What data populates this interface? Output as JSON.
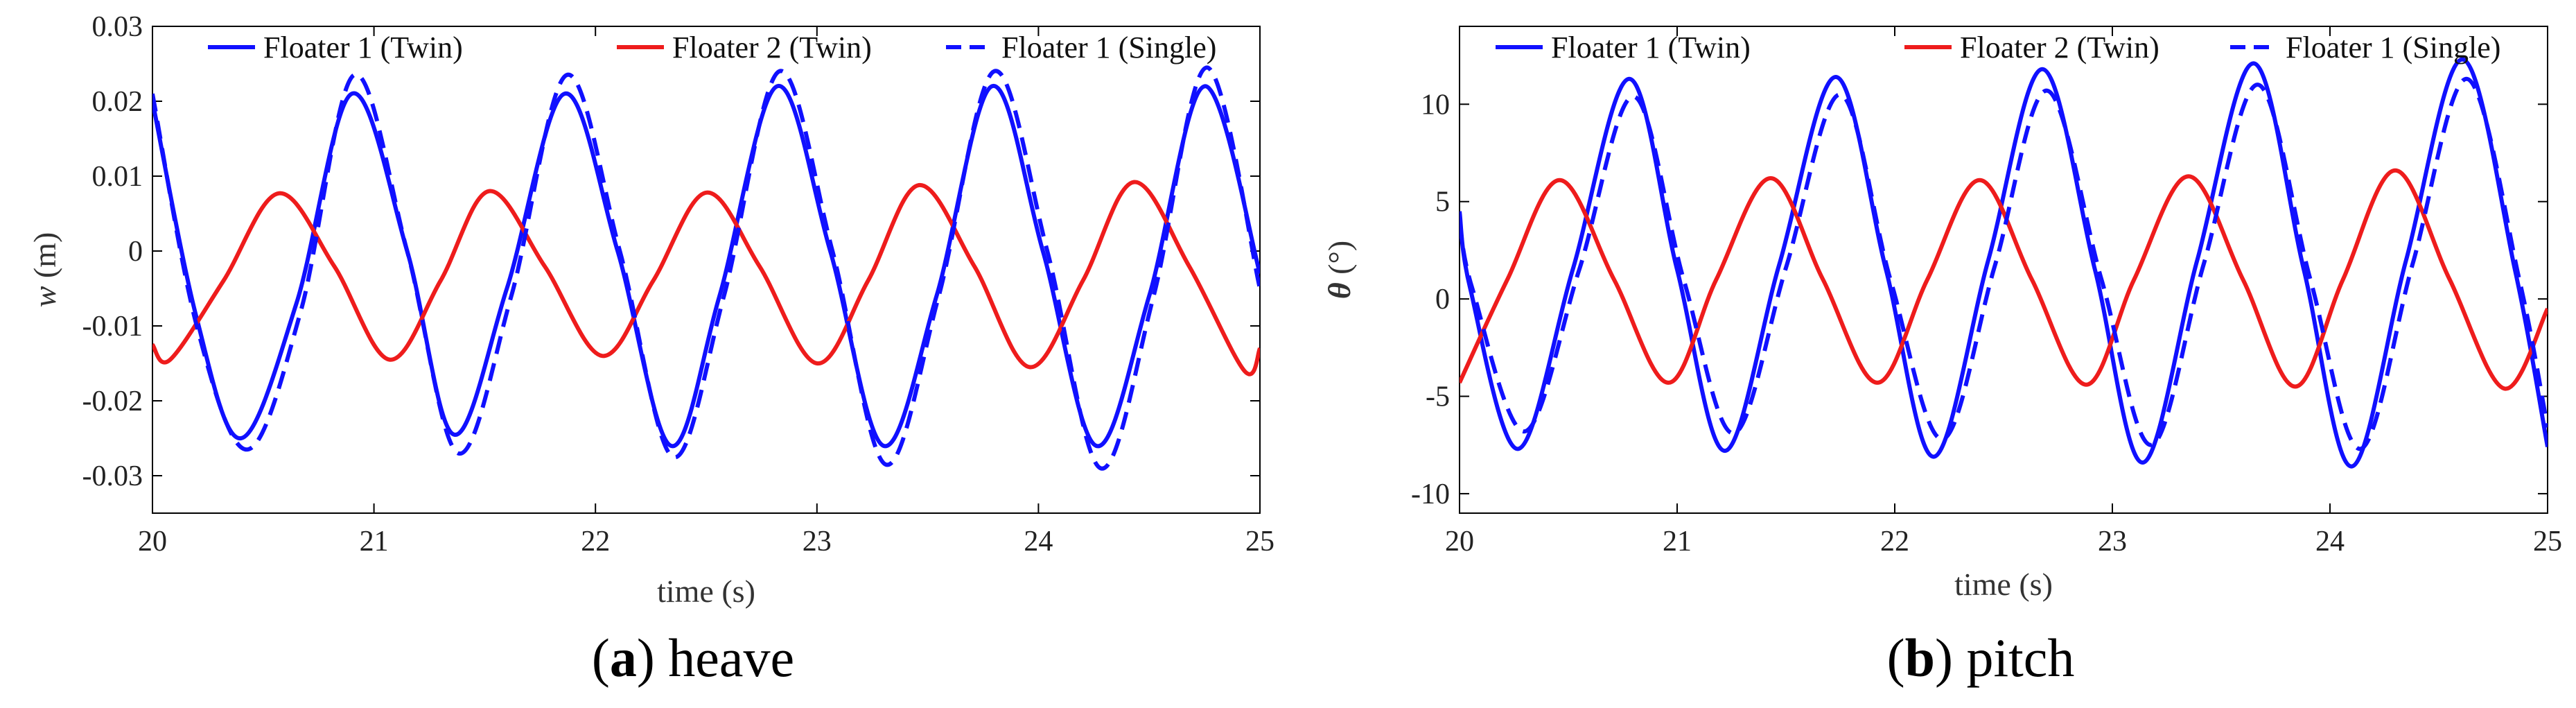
{
  "chart_data": [
    {
      "type": "line",
      "panel_letter": "a",
      "panel_name": "heave",
      "xlabel": "time (s)",
      "ylabel_var": "w",
      "ylabel_unit": " (m)",
      "xlim": [
        20,
        25
      ],
      "ylim": [
        -0.035,
        0.03
      ],
      "xticks": [
        "20",
        "21",
        "22",
        "23",
        "24",
        "25"
      ],
      "yticks": [
        "0.03",
        "0.02",
        "0.01",
        "0",
        "-0.01",
        "-0.02",
        "-0.03"
      ],
      "ytick_values": [
        0.03,
        0.02,
        0.01,
        0,
        -0.01,
        -0.02,
        -0.03
      ],
      "xtick_values": [
        20,
        21,
        22,
        23,
        24,
        25
      ],
      "grid": false,
      "legend_position": "top",
      "series": [
        {
          "name": "Floater 1 (Twin)",
          "color": "#1010ff",
          "style": "solid",
          "x": [
            20,
            20.2,
            20.4,
            20.65,
            20.9,
            21.15,
            21.36,
            21.6,
            21.86,
            22.1,
            22.34,
            22.56,
            22.82,
            23.06,
            23.3,
            23.54,
            23.79,
            24.02,
            24.26,
            24.5,
            24.75,
            25
          ],
          "y": [
            0.02,
            -0.009,
            -0.025,
            -0.007,
            0.021,
            0.0,
            -0.0245,
            -0.005,
            0.021,
            0.0,
            -0.026,
            -0.006,
            0.022,
            0.0,
            -0.026,
            -0.006,
            0.022,
            0.0,
            -0.026,
            -0.006,
            0.022,
            -0.003
          ]
        },
        {
          "name": "Floater 2 (Twin)",
          "color": "#ee1c1c",
          "style": "solid",
          "x": [
            20,
            20.08,
            20.32,
            20.57,
            20.82,
            21.07,
            21.3,
            21.52,
            21.77,
            22.03,
            22.26,
            22.5,
            22.74,
            23.0,
            23.23,
            23.46,
            23.71,
            23.96,
            24.2,
            24.43,
            24.68,
            24.93,
            25
          ],
          "y": [
            -0.0125,
            -0.0145,
            -0.004,
            0.0077,
            -0.002,
            -0.0145,
            -0.004,
            0.008,
            -0.002,
            -0.014,
            -0.004,
            0.0078,
            -0.002,
            -0.015,
            -0.004,
            0.0088,
            -0.002,
            -0.0155,
            -0.004,
            0.0092,
            -0.002,
            -0.016,
            -0.013
          ]
        },
        {
          "name": "Floater 1 (Single)",
          "color": "#1010ff",
          "style": "dashed",
          "x": [
            20,
            20.2,
            20.43,
            20.67,
            20.91,
            21.15,
            21.38,
            21.62,
            21.87,
            22.11,
            22.35,
            22.58,
            22.83,
            23.07,
            23.31,
            23.55,
            23.8,
            24.04,
            24.28,
            24.52,
            24.76,
            25
          ],
          "y": [
            0.021,
            -0.01,
            -0.0265,
            -0.008,
            0.0235,
            0.0,
            -0.027,
            -0.006,
            0.0235,
            0.0,
            -0.0275,
            -0.006,
            0.024,
            0.0,
            -0.0285,
            -0.006,
            0.024,
            0.0,
            -0.029,
            -0.006,
            0.0245,
            -0.005
          ]
        }
      ]
    },
    {
      "type": "line",
      "panel_letter": "b",
      "panel_name": "pitch",
      "xlabel": "time (s)",
      "ylabel_var": "θ",
      "ylabel_unit": " (°)",
      "xlim": [
        20,
        25
      ],
      "ylim": [
        -11,
        14
      ],
      "xticks": [
        "20",
        "21",
        "22",
        "23",
        "24",
        "25"
      ],
      "yticks": [
        "10",
        "5",
        "0",
        "-5",
        "-10"
      ],
      "ytick_values": [
        10,
        5,
        0,
        -5,
        -10
      ],
      "xtick_values": [
        20,
        21,
        22,
        23,
        24,
        25
      ],
      "grid": false,
      "legend_position": "top",
      "series": [
        {
          "name": "Floater 1 (Twin)",
          "color": "#1010ff",
          "style": "solid",
          "x": [
            20,
            20.05,
            20.27,
            20.52,
            20.78,
            21.0,
            21.22,
            21.47,
            21.73,
            21.96,
            22.18,
            22.43,
            22.68,
            22.92,
            23.14,
            23.39,
            23.65,
            23.88,
            24.1,
            24.35,
            24.61,
            24.85,
            25
          ],
          "y": [
            4.5,
            0.5,
            -7.7,
            1.5,
            11.3,
            1.5,
            -7.8,
            1.8,
            11.4,
            1.5,
            -8.1,
            2.0,
            11.8,
            1.5,
            -8.4,
            2.0,
            12.1,
            1.5,
            -8.6,
            2.0,
            12.3,
            1.5,
            -7.6
          ]
        },
        {
          "name": "Floater 2 (Twin)",
          "color": "#ee1c1c",
          "style": "solid",
          "x": [
            20,
            20.22,
            20.46,
            20.71,
            20.96,
            21.18,
            21.43,
            21.67,
            21.92,
            22.15,
            22.39,
            22.63,
            22.88,
            23.1,
            23.35,
            23.6,
            23.84,
            24.06,
            24.3,
            24.55,
            24.8,
            25
          ],
          "y": [
            -4.3,
            1.0,
            6.1,
            1.0,
            -4.3,
            1.0,
            6.2,
            1.0,
            -4.3,
            1.0,
            6.1,
            1.0,
            -4.4,
            1.0,
            6.3,
            1.0,
            -4.5,
            1.0,
            6.6,
            1.0,
            -4.6,
            -0.5
          ]
        },
        {
          "name": "Floater 1 (Single)",
          "color": "#1010ff",
          "style": "dashed",
          "x": [
            20,
            20.06,
            20.3,
            20.55,
            20.8,
            21.03,
            21.26,
            21.5,
            21.75,
            21.98,
            22.22,
            22.46,
            22.7,
            22.95,
            23.18,
            23.42,
            23.67,
            23.91,
            24.14,
            24.38,
            24.63,
            24.87,
            25
          ],
          "y": [
            4.0,
            0.5,
            -6.8,
            1.5,
            10.4,
            1.0,
            -6.9,
            1.6,
            10.5,
            1.0,
            -7.2,
            1.7,
            10.7,
            1.0,
            -7.5,
            1.8,
            11.0,
            1.0,
            -7.7,
            1.8,
            11.3,
            1.0,
            -6.6
          ]
        }
      ]
    }
  ]
}
